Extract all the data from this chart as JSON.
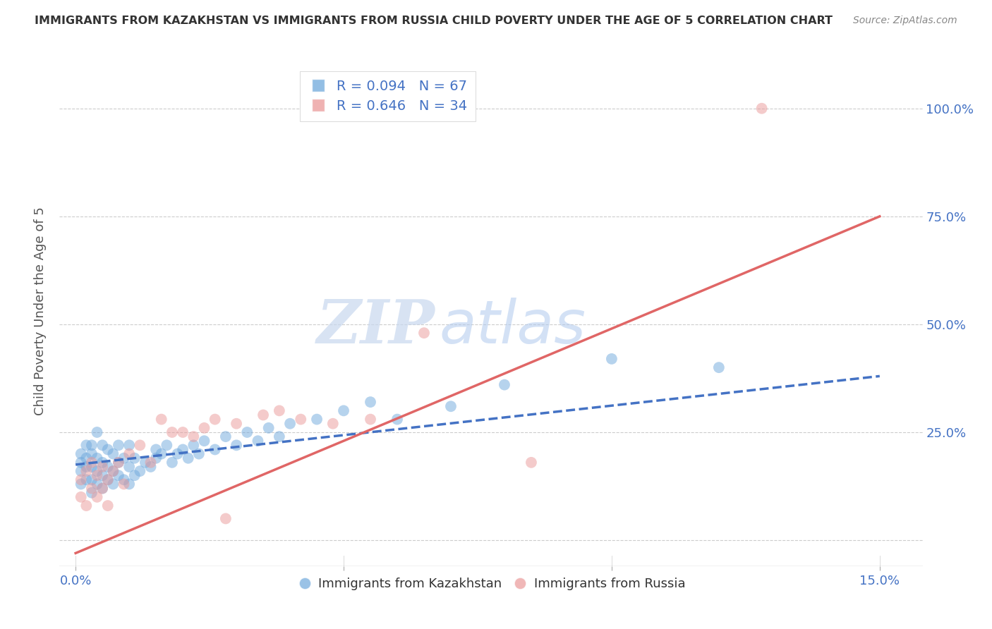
{
  "title": "IMMIGRANTS FROM KAZAKHSTAN VS IMMIGRANTS FROM RUSSIA CHILD POVERTY UNDER THE AGE OF 5 CORRELATION CHART",
  "source": "Source: ZipAtlas.com",
  "ylabel": "Child Poverty Under the Age of 5",
  "kaz_color": "#6fa8dc",
  "rus_color": "#ea9999",
  "kaz_line_color": "#4472C4",
  "rus_line_color": "#e06666",
  "R_kaz": 0.094,
  "N_kaz": 67,
  "R_rus": 0.646,
  "N_rus": 34,
  "legend_label_kaz": "Immigrants from Kazakhstan",
  "legend_label_rus": "Immigrants from Russia",
  "watermark_zip": "ZIP",
  "watermark_atlas": "atlas",
  "kaz_x": [
    0.001,
    0.001,
    0.001,
    0.001,
    0.002,
    0.002,
    0.002,
    0.002,
    0.003,
    0.003,
    0.003,
    0.003,
    0.003,
    0.004,
    0.004,
    0.004,
    0.004,
    0.005,
    0.005,
    0.005,
    0.005,
    0.006,
    0.006,
    0.006,
    0.007,
    0.007,
    0.007,
    0.008,
    0.008,
    0.008,
    0.009,
    0.009,
    0.01,
    0.01,
    0.01,
    0.011,
    0.011,
    0.012,
    0.013,
    0.014,
    0.015,
    0.015,
    0.016,
    0.017,
    0.018,
    0.019,
    0.02,
    0.021,
    0.022,
    0.023,
    0.024,
    0.026,
    0.028,
    0.03,
    0.032,
    0.034,
    0.036,
    0.038,
    0.04,
    0.045,
    0.05,
    0.055,
    0.06,
    0.07,
    0.08,
    0.1,
    0.12
  ],
  "kaz_y": [
    0.13,
    0.16,
    0.18,
    0.2,
    0.14,
    0.17,
    0.19,
    0.22,
    0.11,
    0.14,
    0.17,
    0.2,
    0.22,
    0.13,
    0.16,
    0.19,
    0.25,
    0.12,
    0.15,
    0.18,
    0.22,
    0.14,
    0.17,
    0.21,
    0.13,
    0.16,
    0.2,
    0.15,
    0.18,
    0.22,
    0.14,
    0.19,
    0.13,
    0.17,
    0.22,
    0.15,
    0.19,
    0.16,
    0.18,
    0.17,
    0.19,
    0.21,
    0.2,
    0.22,
    0.18,
    0.2,
    0.21,
    0.19,
    0.22,
    0.2,
    0.23,
    0.21,
    0.24,
    0.22,
    0.25,
    0.23,
    0.26,
    0.24,
    0.27,
    0.28,
    0.3,
    0.32,
    0.28,
    0.31,
    0.36,
    0.42,
    0.4
  ],
  "rus_x": [
    0.001,
    0.001,
    0.002,
    0.002,
    0.003,
    0.003,
    0.004,
    0.004,
    0.005,
    0.005,
    0.006,
    0.006,
    0.007,
    0.008,
    0.009,
    0.01,
    0.012,
    0.014,
    0.016,
    0.018,
    0.02,
    0.022,
    0.024,
    0.026,
    0.028,
    0.03,
    0.035,
    0.038,
    0.042,
    0.048,
    0.055,
    0.065,
    0.085,
    0.128
  ],
  "rus_y": [
    0.1,
    0.14,
    0.08,
    0.16,
    0.12,
    0.18,
    0.1,
    0.15,
    0.12,
    0.17,
    0.08,
    0.14,
    0.16,
    0.18,
    0.13,
    0.2,
    0.22,
    0.18,
    0.28,
    0.25,
    0.25,
    0.24,
    0.26,
    0.28,
    0.05,
    0.27,
    0.29,
    0.3,
    0.28,
    0.27,
    0.28,
    0.48,
    0.18,
    1.0
  ],
  "xlim": [
    -0.003,
    0.158
  ],
  "ylim": [
    -0.06,
    1.12
  ],
  "x_tick_positions": [
    0.0,
    0.05,
    0.1,
    0.15
  ],
  "y_tick_positions": [
    0.0,
    0.25,
    0.5,
    0.75,
    1.0
  ],
  "right_y_labels": [
    "",
    "25.0%",
    "50.0%",
    "75.0%",
    "100.0%"
  ],
  "x_labels_show": [
    "0.0%",
    "",
    "",
    "15.0%"
  ]
}
